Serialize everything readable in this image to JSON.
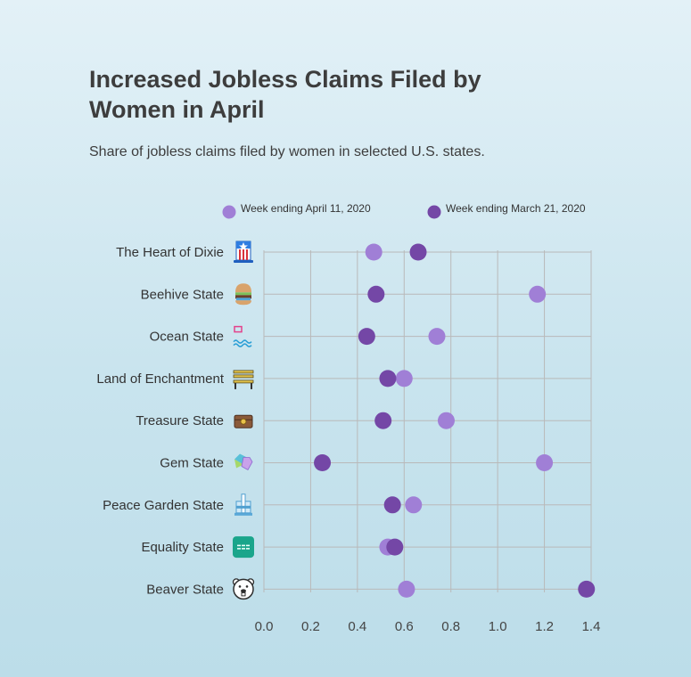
{
  "header": {
    "title": "Increased Jobless Claims Filed by Women in April",
    "subtitle": "Share of jobless claims filed by women in selected U.S. states."
  },
  "chart_data": {
    "type": "scatter",
    "title": "Increased Jobless Claims Filed by Women in April",
    "subtitle": "Share of jobless claims filed by women in selected U.S. states.",
    "xlabel": "",
    "ylabel": "",
    "xlim": [
      0,
      1.4
    ],
    "xticks": [
      "0.0",
      "0.2",
      "0.4",
      "0.6",
      "0.8",
      "1.0",
      "1.2",
      "1.4"
    ],
    "grid": true,
    "legend_position": "top",
    "categories": [
      "The Heart of Dixie",
      "Beehive State",
      "Ocean State",
      "Land of Enchantment",
      "Treasure State",
      "Gem State",
      "Peace Garden State",
      "Equality State",
      "Beaver State"
    ],
    "category_icons": [
      "top-hat-icon",
      "burger-icon",
      "ocean-waves-icon",
      "bench-icon",
      "treasure-chest-icon",
      "gem-icon",
      "monument-icon",
      "equality-icon",
      "beaver-icon"
    ],
    "series": [
      {
        "name": "Week ending April 11, 2020",
        "color": "#a07fd6",
        "values": [
          0.47,
          1.17,
          0.74,
          0.6,
          0.78,
          1.2,
          0.64,
          0.53,
          0.61
        ]
      },
      {
        "name": "Week ending March 21, 2020",
        "color": "#7447a6",
        "values": [
          0.66,
          0.48,
          0.44,
          0.53,
          0.51,
          0.25,
          0.55,
          0.56,
          1.38
        ]
      }
    ]
  }
}
